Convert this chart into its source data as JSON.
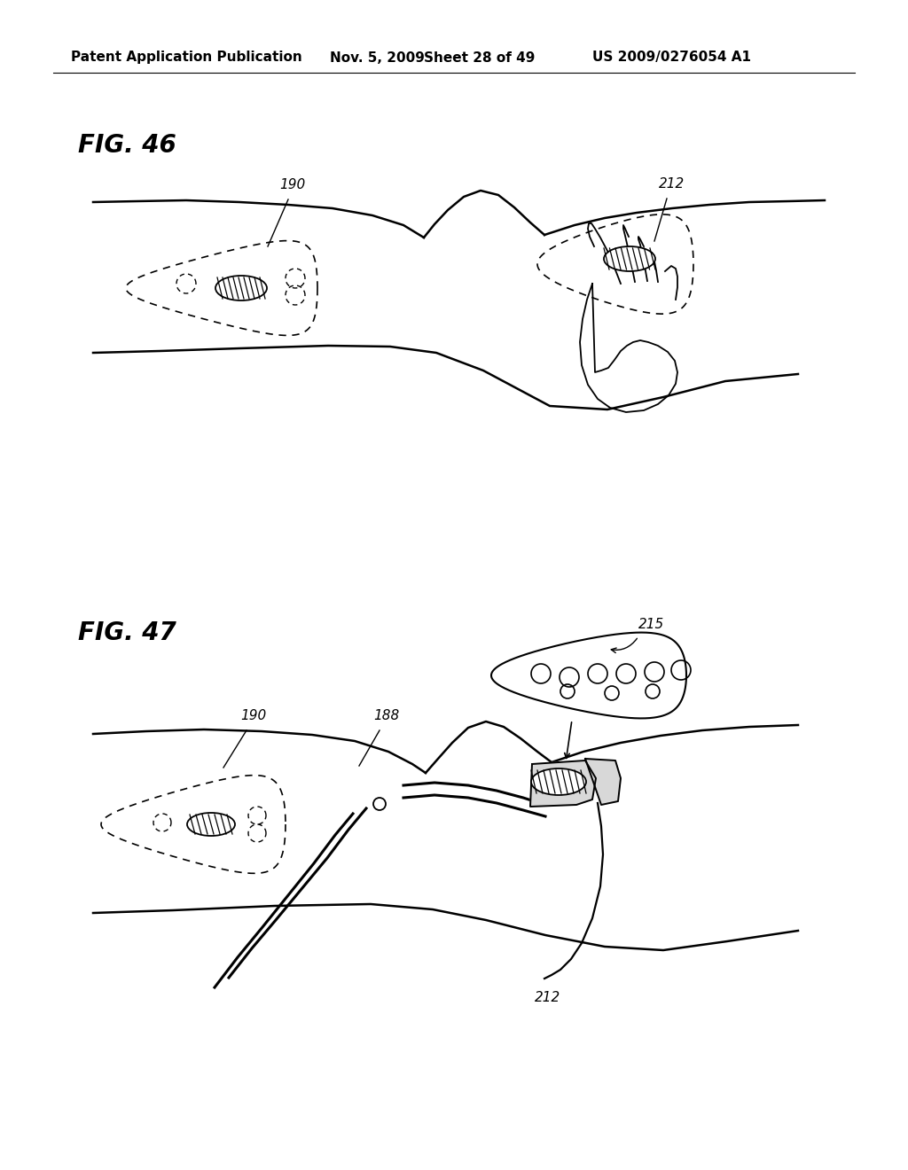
{
  "background_color": "#ffffff",
  "header_text": "Patent Application Publication",
  "header_date": "Nov. 5, 2009",
  "header_sheet": "Sheet 28 of 49",
  "header_patent": "US 2009/0276054 A1",
  "fig46_label": "FIG. 46",
  "fig47_label": "FIG. 47",
  "label_190_fig46": "190",
  "label_212_fig46": "212",
  "label_190_fig47": "190",
  "label_188_fig47": "188",
  "label_215_fig47": "215",
  "label_212_fig47": "212",
  "line_color": "#000000",
  "text_color": "#000000",
  "fig_label_fontsize": 20,
  "header_fontsize": 11,
  "annotation_fontsize": 11
}
